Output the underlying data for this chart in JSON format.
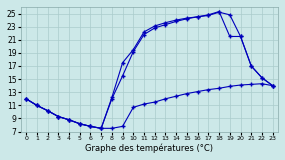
{
  "xlabel": "Graphe des températures (°C)",
  "bg_color": "#cce8e8",
  "grid_color": "#aacccc",
  "line_color": "#0000bb",
  "x_ticks": [
    0,
    1,
    2,
    3,
    4,
    5,
    6,
    7,
    8,
    9,
    10,
    11,
    12,
    13,
    14,
    15,
    16,
    17,
    18,
    19,
    20,
    21,
    22,
    23
  ],
  "y_ticks": [
    7,
    9,
    11,
    13,
    15,
    17,
    19,
    21,
    23,
    25
  ],
  "xlim": [
    -0.5,
    23.5
  ],
  "ylim": [
    7,
    26
  ],
  "line1_x": [
    0,
    1,
    2,
    3,
    4,
    5,
    6,
    7,
    8,
    9,
    10,
    11,
    12,
    13,
    14,
    15,
    16,
    17,
    18,
    19,
    20,
    21,
    22,
    23
  ],
  "line1_y": [
    12.0,
    11.0,
    10.2,
    9.3,
    8.8,
    8.2,
    7.8,
    7.5,
    7.5,
    7.8,
    10.7,
    11.2,
    11.5,
    12.0,
    12.4,
    12.8,
    13.1,
    13.4,
    13.6,
    13.9,
    14.1,
    14.2,
    14.3,
    14.0
  ],
  "line2_x": [
    0,
    1,
    2,
    3,
    4,
    5,
    6,
    7,
    8,
    9,
    10,
    11,
    12,
    13,
    14,
    15,
    16,
    17,
    18,
    19,
    20,
    21,
    22,
    23
  ],
  "line2_y": [
    12.0,
    11.0,
    10.2,
    9.3,
    8.8,
    8.2,
    7.8,
    7.5,
    12.0,
    15.5,
    19.2,
    21.8,
    22.8,
    23.3,
    23.8,
    24.2,
    24.5,
    24.7,
    25.2,
    24.8,
    21.5,
    17.0,
    15.2,
    14.0
  ],
  "line3_x": [
    0,
    1,
    2,
    3,
    4,
    5,
    6,
    7,
    8,
    9,
    10,
    11,
    12,
    13,
    14,
    15,
    16,
    17,
    18,
    19,
    20,
    21,
    22,
    23
  ],
  "line3_y": [
    12.0,
    11.0,
    10.2,
    9.3,
    8.8,
    8.2,
    7.8,
    7.5,
    12.2,
    17.5,
    19.5,
    22.2,
    23.1,
    23.6,
    24.0,
    24.3,
    24.5,
    24.8,
    25.3,
    21.5,
    21.5,
    17.0,
    15.2,
    14.0
  ]
}
